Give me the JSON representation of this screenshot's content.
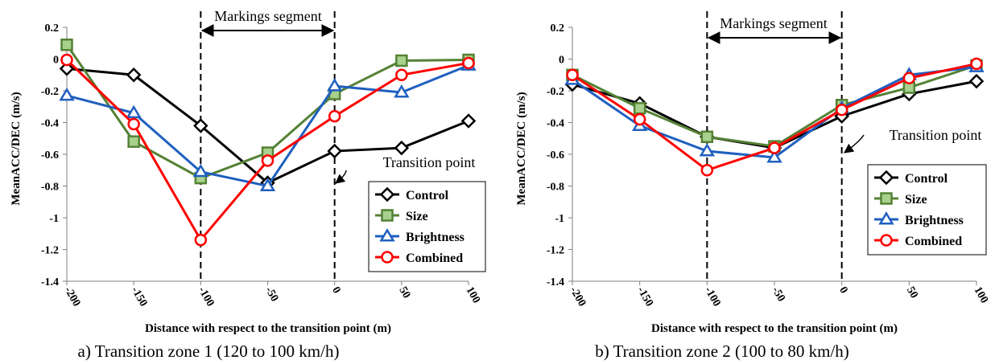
{
  "chart_data": [
    {
      "type": "line",
      "caption": "a) Transition zone 1 (120 to 100 km/h)",
      "xlabel": "Distance with respect to the transition point (m)",
      "ylabel": "MeanACC/DEC  (m/s)",
      "x": [
        -200,
        -150,
        -100,
        -50,
        0,
        50,
        100
      ],
      "ylim": [
        -1.4,
        0.2
      ],
      "yticks": [
        "0.2",
        "0",
        "-0.2",
        "-0.4",
        "-0.6",
        "-0.8",
        "-1",
        "-1.2",
        "-1.4"
      ],
      "xticks": [
        "-200",
        "-150",
        "-100",
        "-50",
        "0",
        "50",
        "100"
      ],
      "legend_position": "lower-right",
      "annotations": {
        "segment": "Markings segment",
        "transition": "Transition point"
      },
      "series": [
        {
          "name": "Control",
          "values": [
            -0.06,
            -0.1,
            -0.42,
            -0.78,
            -0.58,
            -0.56,
            -0.39
          ]
        },
        {
          "name": "Size",
          "values": [
            0.09,
            -0.52,
            -0.75,
            -0.59,
            -0.22,
            -0.01,
            -0.005
          ]
        },
        {
          "name": "Brightness",
          "values": [
            -0.23,
            -0.34,
            -0.71,
            -0.8,
            -0.17,
            -0.21,
            -0.04
          ]
        },
        {
          "name": "Combined",
          "values": [
            -0.005,
            -0.41,
            -1.14,
            -0.64,
            -0.36,
            -0.1,
            -0.025
          ]
        }
      ]
    },
    {
      "type": "line",
      "caption": "b) Transition zone 2 (100 to 80 km/h)",
      "xlabel": "Distance with respect to the transition point (m)",
      "ylabel": "MeanACC/DEC  (m/s)",
      "x": [
        -200,
        -150,
        -100,
        -50,
        0,
        50,
        100
      ],
      "ylim": [
        -1.4,
        0.2
      ],
      "yticks": [
        "0.2",
        "0",
        "-0.2",
        "-0.4",
        "-0.6",
        "-0.8",
        "-1",
        "-1.2",
        "-1.4"
      ],
      "xticks": [
        "-200",
        "-150",
        "-100",
        "-50",
        "0",
        "50",
        "100"
      ],
      "legend_position": "right",
      "annotations": {
        "segment": "Markings segment",
        "transition": "Transition point"
      },
      "series": [
        {
          "name": "Control",
          "values": [
            -0.16,
            -0.28,
            -0.49,
            -0.56,
            -0.36,
            -0.22,
            -0.14
          ]
        },
        {
          "name": "Size",
          "values": [
            -0.1,
            -0.31,
            -0.49,
            -0.55,
            -0.29,
            -0.18,
            -0.04
          ]
        },
        {
          "name": "Brightness",
          "values": [
            -0.13,
            -0.42,
            -0.58,
            -0.62,
            -0.31,
            -0.1,
            -0.05
          ]
        },
        {
          "name": "Combined",
          "values": [
            -0.1,
            -0.38,
            -0.7,
            -0.56,
            -0.32,
            -0.12,
            -0.03
          ]
        }
      ]
    }
  ],
  "style": {
    "colors": {
      "Control": "#000000",
      "Size": "#548235",
      "Brightness": "#1f5fbf",
      "Combined": "#ff0000"
    },
    "markers": {
      "Control": "diamond",
      "Size": "square",
      "Brightness": "triangle",
      "Combined": "circle"
    },
    "marker_fill": {
      "Control": "#ffffff",
      "Size": "#a9d18e",
      "Brightness": "#ffffff",
      "Combined": "#ffffff"
    }
  }
}
